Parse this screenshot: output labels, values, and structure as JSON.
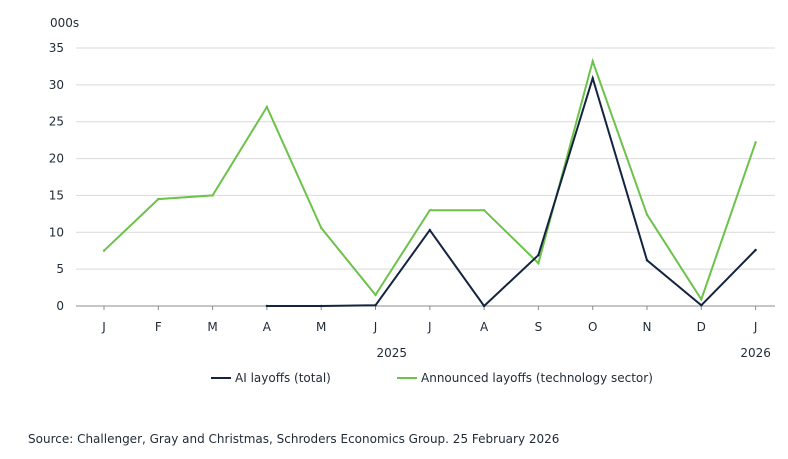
{
  "chart_data": {
    "type": "line",
    "unit_label": "000s",
    "categories": [
      "J",
      "F",
      "M",
      "A",
      "M",
      "J",
      "J",
      "A",
      "S",
      "O",
      "N",
      "D",
      "J"
    ],
    "year_labels": [
      {
        "label": "2025",
        "index": 5.3
      },
      {
        "label": "2026",
        "index": 12
      }
    ],
    "ylim": [
      0,
      35
    ],
    "yticks": [
      0,
      5,
      10,
      15,
      20,
      25,
      30,
      35
    ],
    "grid": true,
    "legend_position": "bottom",
    "series": [
      {
        "name": "AI layoffs (total)",
        "color": "#14233f",
        "values": [
          null,
          null,
          null,
          0.0,
          0.0,
          0.1,
          10.3,
          0.0,
          6.9,
          30.9,
          6.2,
          0.1,
          7.6
        ]
      },
      {
        "name": "Announced layoffs (technology sector)",
        "color": "#6cc24a",
        "values": [
          7.5,
          14.5,
          15.0,
          27.0,
          10.6,
          1.5,
          13.0,
          13.0,
          5.8,
          33.2,
          12.4,
          0.9,
          22.2
        ]
      }
    ]
  },
  "source_text": "Source: Challenger, Gray and Christmas, Schroders Economics Group. 25 February 2026"
}
